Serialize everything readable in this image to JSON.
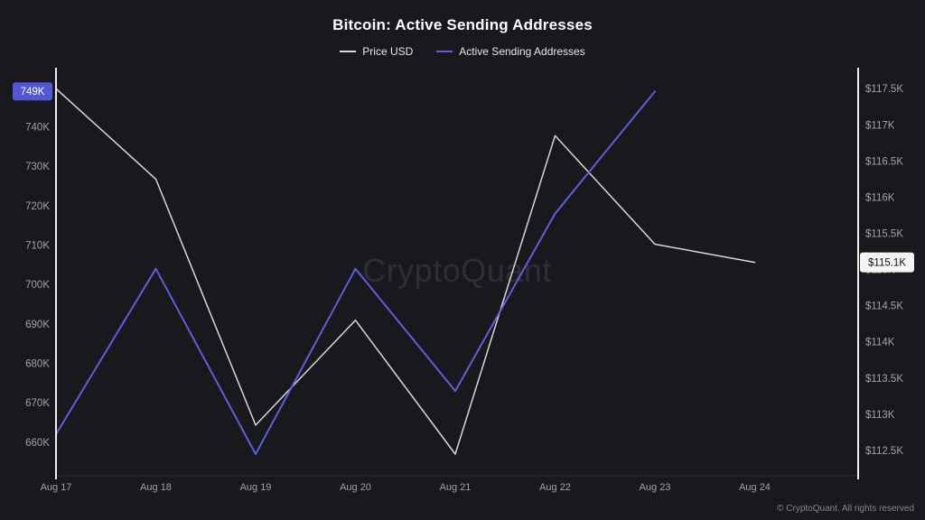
{
  "title": "Bitcoin: Active Sending Addresses",
  "watermark": "CryptoQuant",
  "copyright": "© CryptoQuant. All rights reserved",
  "colors": {
    "background": "#18181d",
    "price_line": "#d9d9d9",
    "addresses_line": "#5d5fe0",
    "axis_line": "#f0f0f0",
    "tick_text": "#a2a2aa",
    "badge_left_bg": "#5356d6",
    "badge_left_text": "#ffffff",
    "badge_right_bg": "#f5f5f5",
    "badge_right_text": "#111111"
  },
  "chart_data": {
    "type": "line",
    "title": "Bitcoin: Active Sending Addresses",
    "grid": false,
    "legend_position": "top",
    "categories": [
      "Aug 17",
      "Aug 18",
      "Aug 19",
      "Aug 20",
      "Aug 21",
      "Aug 22",
      "Aug 23",
      "Aug 24"
    ],
    "series": [
      {
        "name": "Price USD",
        "axis": "right",
        "color": "#d9d9d9",
        "values": [
          117.5,
          116.25,
          112.85,
          114.3,
          112.45,
          116.85,
          115.35,
          115.1
        ]
      },
      {
        "name": "Active Sending Addresses",
        "axis": "left",
        "color": "#5d5fe0",
        "values": [
          662,
          704,
          657,
          704,
          673,
          718,
          749,
          null
        ]
      }
    ],
    "left_axis": {
      "unit": "K addresses",
      "domain": [
        651.5,
        755
      ],
      "ticks": [
        740,
        730,
        720,
        710,
        700,
        690,
        680,
        670,
        660
      ],
      "tick_labels": [
        "740K",
        "730K",
        "720K",
        "710K",
        "700K",
        "690K",
        "680K",
        "670K",
        "660K"
      ],
      "last_value": 749,
      "last_value_label": "749K"
    },
    "right_axis": {
      "unit": "$K USD",
      "domain": [
        112.15,
        117.79
      ],
      "ticks": [
        117.5,
        117,
        116.5,
        116,
        115.5,
        115,
        114.5,
        114,
        113.5,
        113,
        112.5
      ],
      "tick_labels": [
        "$117.5K",
        "$117K",
        "$116.5K",
        "$116K",
        "$115.5K",
        "$115K",
        "$114.5K",
        "$114K",
        "$113.5K",
        "$113K",
        "$112.5K"
      ],
      "last_value": 115.1,
      "last_value_label": "$115.1K"
    }
  }
}
